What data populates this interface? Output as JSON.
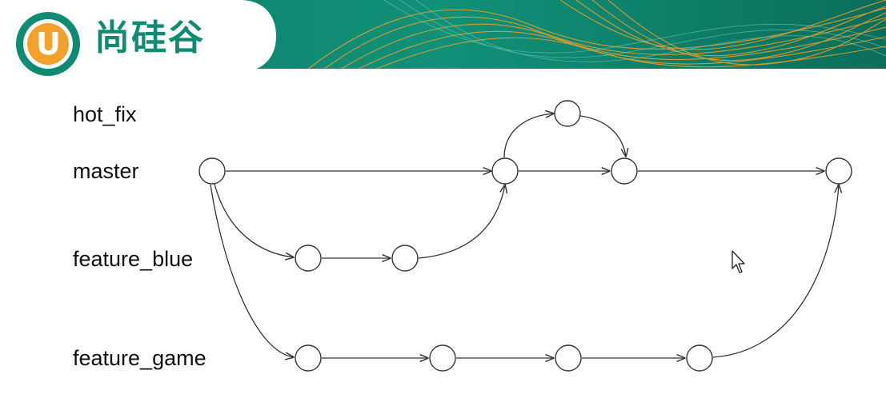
{
  "brand": {
    "logo_letter": "U",
    "name": "尚硅谷",
    "colors": {
      "primary_green": "#0f8a73",
      "dark_green": "#0a6e5b",
      "accent_orange": "#f2a12a"
    }
  },
  "diagram": {
    "branches": [
      {
        "id": "hot_fix",
        "label": "hot_fix"
      },
      {
        "id": "master",
        "label": "master"
      },
      {
        "id": "feature_blue",
        "label": "feature_blue"
      },
      {
        "id": "feature_game",
        "label": "feature_game"
      }
    ],
    "commits": [
      {
        "id": "m1",
        "branch": "master"
      },
      {
        "id": "m2",
        "branch": "master"
      },
      {
        "id": "m3",
        "branch": "master"
      },
      {
        "id": "m4",
        "branch": "master"
      },
      {
        "id": "h1",
        "branch": "hot_fix"
      },
      {
        "id": "b1",
        "branch": "feature_blue"
      },
      {
        "id": "b2",
        "branch": "feature_blue"
      },
      {
        "id": "g1",
        "branch": "feature_game"
      },
      {
        "id": "g2",
        "branch": "feature_game"
      },
      {
        "id": "g3",
        "branch": "feature_game"
      },
      {
        "id": "g4",
        "branch": "feature_game"
      }
    ],
    "edges": [
      {
        "from": "m1",
        "to": "m2"
      },
      {
        "from": "m2",
        "to": "m3"
      },
      {
        "from": "m3",
        "to": "m4"
      },
      {
        "from": "m2",
        "to": "h1"
      },
      {
        "from": "h1",
        "to": "m3"
      },
      {
        "from": "m1",
        "to": "b1"
      },
      {
        "from": "b1",
        "to": "b2"
      },
      {
        "from": "b2",
        "to": "m2"
      },
      {
        "from": "m1",
        "to": "g1"
      },
      {
        "from": "g1",
        "to": "g2"
      },
      {
        "from": "g2",
        "to": "g3"
      },
      {
        "from": "g3",
        "to": "g4"
      },
      {
        "from": "g4",
        "to": "m4"
      }
    ]
  },
  "cursor": {
    "icon": "mouse-pointer-icon"
  }
}
